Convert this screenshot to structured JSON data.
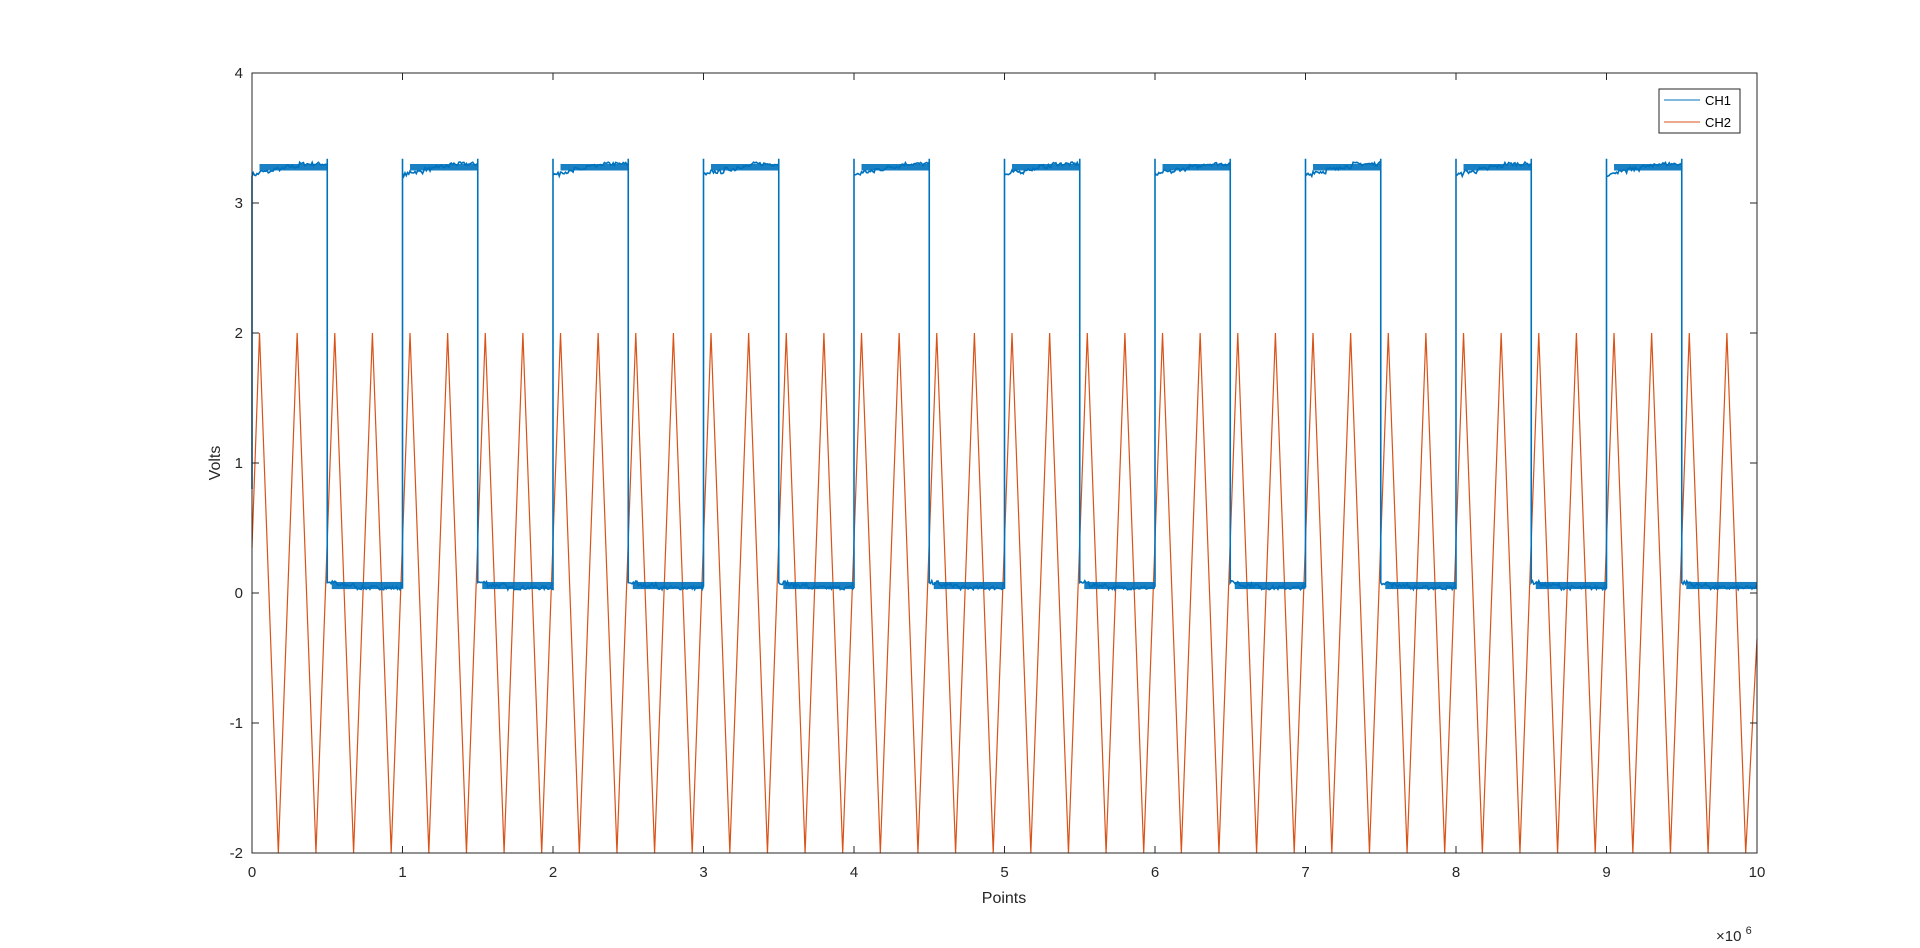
{
  "chart_data": {
    "type": "line",
    "xlabel": "Points",
    "ylabel": "Volts",
    "xlim": [
      0,
      10000000
    ],
    "ylim": [
      -2,
      4
    ],
    "x_ticks": [
      0,
      1,
      2,
      3,
      4,
      5,
      6,
      7,
      8,
      9,
      10
    ],
    "x_tick_labels": [
      "0",
      "1",
      "2",
      "3",
      "4",
      "5",
      "6",
      "7",
      "8",
      "9",
      "10"
    ],
    "x_exponent_label": "×10",
    "x_exponent_power": "6",
    "y_ticks": [
      -2,
      -1,
      0,
      1,
      2,
      3,
      4
    ],
    "y_tick_labels": [
      "-2",
      "-1",
      "0",
      "1",
      "2",
      "3",
      "4"
    ],
    "grid": false,
    "legend_position": "top-right",
    "series": [
      {
        "name": "CH1",
        "color": "#0072BD",
        "waveform": "square",
        "period_points": 1000000,
        "high_start_volts": 3.22,
        "high_end_volts": 3.29,
        "low_start_volts": 0.08,
        "low_end_volts": 0.03,
        "edge_spike_volts": 3.34,
        "x_start": 0,
        "x_end": 10000000
      },
      {
        "name": "CH2",
        "color": "#D95319",
        "waveform": "triangle",
        "peaks_x": [
          50000,
          300000,
          550000,
          800000,
          1050000,
          1300000,
          1550000,
          1800000,
          2050000,
          2300000,
          2550000,
          2800000,
          3050000,
          3300000,
          3550000,
          3800000,
          4050000,
          4300000,
          4550000,
          4800000,
          5050000,
          5300000,
          5550000,
          5800000,
          6050000,
          6300000,
          6550000,
          6800000,
          7050000,
          7300000,
          7550000,
          7800000,
          8050000,
          8300000,
          8550000,
          8800000,
          9050000,
          9300000,
          9550000,
          9800000
        ],
        "troughs_x": [
          175000,
          425000,
          675000,
          925000,
          1175000,
          1425000,
          1675000,
          1925000,
          2175000,
          2425000,
          2675000,
          2925000,
          3175000,
          3425000,
          3675000,
          3925000,
          4175000,
          4425000,
          4675000,
          4925000,
          5175000,
          5425000,
          5675000,
          5925000,
          6175000,
          6425000,
          6675000,
          6925000,
          7175000,
          7425000,
          7675000,
          7925000,
          8175000,
          8425000,
          8675000,
          8925000,
          9175000,
          9425000,
          9675000,
          9925000
        ],
        "peak_volts": 2.0,
        "trough_volts": -2.0,
        "start_point": [
          0,
          0.35
        ],
        "end_point": [
          10000000,
          -0.35
        ]
      }
    ]
  }
}
